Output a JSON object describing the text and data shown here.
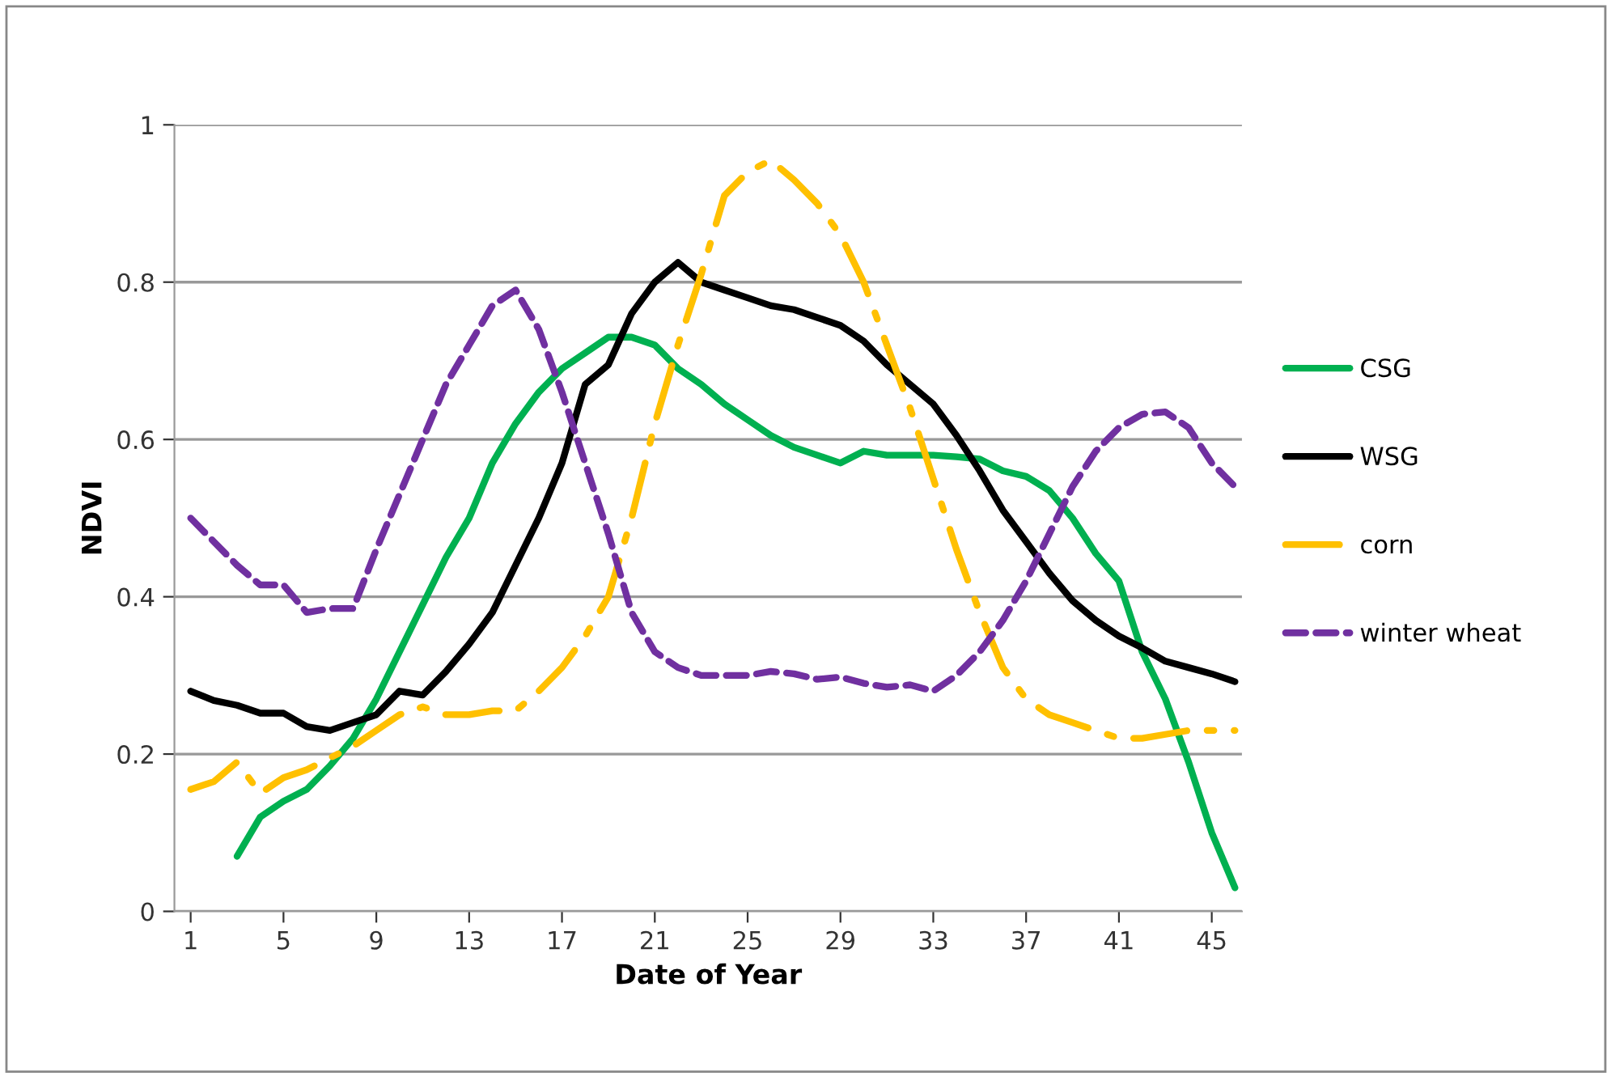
{
  "chart_data": {
    "type": "line",
    "xlabel": "Date of Year",
    "ylabel": "NDVI",
    "x": [
      1,
      2,
      3,
      4,
      5,
      6,
      7,
      8,
      9,
      10,
      11,
      12,
      13,
      14,
      15,
      16,
      17,
      18,
      19,
      20,
      21,
      22,
      23,
      24,
      25,
      26,
      27,
      28,
      29,
      30,
      31,
      32,
      33,
      34,
      35,
      36,
      37,
      38,
      39,
      40,
      41,
      42,
      43,
      44,
      45,
      46
    ],
    "xlim": [
      0.3,
      46.3
    ],
    "xticks": [
      1,
      5,
      9,
      13,
      17,
      21,
      25,
      29,
      33,
      37,
      41,
      45
    ],
    "ylim": [
      0,
      1
    ],
    "yticks": [
      0,
      0.2,
      0.4,
      0.6,
      0.8,
      1
    ],
    "grid": "y",
    "legend": "right",
    "marker": "none",
    "series": [
      {
        "name": "CSG",
        "color": "#00b050",
        "line_style": "solid",
        "values": [
          null,
          null,
          0.07,
          0.12,
          0.14,
          0.155,
          0.185,
          0.22,
          0.27,
          0.33,
          0.39,
          0.45,
          0.5,
          0.57,
          0.62,
          0.66,
          0.69,
          0.71,
          0.73,
          0.73,
          0.72,
          0.69,
          0.67,
          0.645,
          0.625,
          0.605,
          0.59,
          0.58,
          0.57,
          0.585,
          0.58,
          0.58,
          0.58,
          0.578,
          0.575,
          0.56,
          0.553,
          0.535,
          0.5,
          0.455,
          0.42,
          0.33,
          0.27,
          0.19,
          0.1,
          0.03
        ]
      },
      {
        "name": "WSG",
        "color": "#000000",
        "line_style": "solid",
        "values": [
          0.28,
          0.268,
          0.262,
          0.252,
          0.252,
          0.235,
          0.23,
          0.24,
          0.25,
          0.28,
          0.275,
          0.305,
          0.34,
          0.38,
          0.44,
          0.5,
          0.57,
          0.67,
          0.695,
          0.76,
          0.8,
          0.825,
          0.8,
          0.79,
          0.78,
          0.77,
          0.765,
          0.755,
          0.745,
          0.725,
          0.695,
          0.67,
          0.645,
          0.605,
          0.56,
          0.51,
          0.47,
          0.43,
          0.395,
          0.37,
          0.35,
          0.335,
          0.318,
          0.31,
          0.302,
          0.292
        ]
      },
      {
        "name": "corn",
        "color": "#ffc000",
        "line_style": "dashdot",
        "values": [
          0.155,
          0.165,
          0.19,
          0.15,
          0.17,
          0.18,
          0.195,
          0.21,
          0.23,
          0.25,
          0.26,
          0.25,
          0.25,
          0.255,
          0.255,
          0.28,
          0.31,
          0.35,
          0.4,
          0.5,
          0.62,
          0.72,
          0.81,
          0.91,
          0.94,
          0.955,
          0.93,
          0.9,
          0.86,
          0.8,
          0.72,
          0.64,
          0.55,
          0.46,
          0.38,
          0.31,
          0.27,
          0.25,
          0.24,
          0.23,
          0.22,
          0.22,
          0.225,
          0.23,
          0.23,
          0.23
        ]
      },
      {
        "name": "winter wheat",
        "color": "#7030a0",
        "line_style": "dashed",
        "values": [
          0.5,
          0.47,
          0.44,
          0.415,
          0.415,
          0.38,
          0.385,
          0.385,
          0.46,
          0.53,
          0.6,
          0.67,
          0.72,
          0.77,
          0.79,
          0.74,
          0.66,
          0.57,
          0.48,
          0.38,
          0.33,
          0.31,
          0.3,
          0.3,
          0.3,
          0.305,
          0.302,
          0.295,
          0.298,
          0.29,
          0.285,
          0.288,
          0.28,
          0.3,
          0.33,
          0.37,
          0.42,
          0.48,
          0.54,
          0.585,
          0.615,
          0.632,
          0.635,
          0.615,
          0.57,
          0.54
        ]
      }
    ]
  }
}
